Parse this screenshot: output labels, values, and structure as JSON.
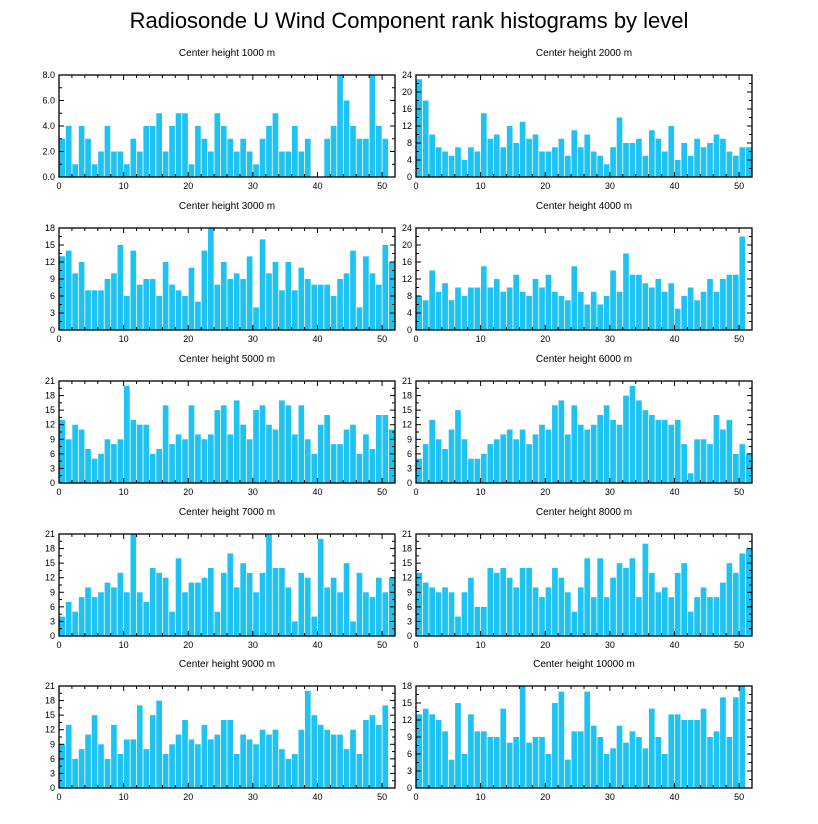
{
  "title": "Radiosonde U Wind Component rank histograms by level",
  "colors": {
    "bar": "#1ec3f2",
    "axis": "#000000"
  },
  "chart_data": [
    {
      "type": "bar",
      "title": "Center height 1000 m",
      "xlim": [
        0,
        52
      ],
      "ylim": [
        0,
        8
      ],
      "xticks": [
        "0",
        "10",
        "20",
        "30",
        "40",
        "50"
      ],
      "yticks": [
        "0.0",
        "2.0",
        "4.0",
        "6.0",
        "8.0"
      ],
      "values": [
        3,
        4,
        1,
        4,
        3,
        1,
        2,
        4,
        2,
        2,
        1,
        3,
        2,
        4,
        4,
        5,
        2,
        4,
        5,
        5,
        1,
        4,
        3,
        2,
        5,
        4,
        3,
        2,
        3,
        2,
        1,
        3,
        4,
        5,
        2,
        2,
        4,
        2,
        3,
        0,
        0,
        3,
        4,
        8,
        6,
        4,
        3,
        3,
        8,
        4,
        3,
        0
      ]
    },
    {
      "type": "bar",
      "title": "Center height 2000 m",
      "xlim": [
        0,
        52
      ],
      "ylim": [
        0,
        24
      ],
      "xticks": [
        "0",
        "10",
        "20",
        "30",
        "40",
        "50"
      ],
      "yticks": [
        "0",
        "4",
        "8",
        "12",
        "16",
        "20",
        "24"
      ],
      "values": [
        23,
        18,
        10,
        7,
        6,
        5,
        7,
        4,
        7,
        6,
        15,
        9,
        10,
        7,
        12,
        8,
        13,
        9,
        10,
        6,
        6,
        7,
        9,
        5,
        11,
        7,
        10,
        6,
        5,
        3,
        7,
        14,
        8,
        8,
        9,
        5,
        11,
        9,
        6,
        12,
        4,
        8,
        5,
        9,
        7,
        8,
        10,
        9,
        6,
        5,
        7,
        7
      ]
    },
    {
      "type": "bar",
      "title": "Center height 3000 m",
      "xlim": [
        0,
        52
      ],
      "ylim": [
        0,
        18
      ],
      "xticks": [
        "0",
        "10",
        "20",
        "30",
        "40",
        "50"
      ],
      "yticks": [
        "0",
        "3",
        "6",
        "9",
        "12",
        "15",
        "18"
      ],
      "values": [
        13,
        14,
        10,
        12,
        7,
        7,
        7,
        9,
        10,
        15,
        6,
        14,
        8,
        9,
        9,
        6,
        12,
        8,
        7,
        6,
        11,
        5,
        14,
        18,
        8,
        12,
        9,
        10,
        9,
        13,
        4,
        16,
        10,
        12,
        7,
        12,
        7,
        11,
        9,
        8,
        8,
        8,
        6,
        9,
        10,
        14,
        4,
        13,
        10,
        8,
        15,
        12
      ]
    },
    {
      "type": "bar",
      "title": "Center height 4000 m",
      "xlim": [
        0,
        52
      ],
      "ylim": [
        0,
        24
      ],
      "xticks": [
        "0",
        "10",
        "20",
        "30",
        "40",
        "50"
      ],
      "yticks": [
        "0",
        "4",
        "8",
        "12",
        "16",
        "20",
        "24"
      ],
      "values": [
        8,
        7,
        14,
        9,
        11,
        7,
        10,
        8,
        10,
        10,
        15,
        10,
        12,
        9,
        10,
        13,
        9,
        8,
        12,
        10,
        13,
        9,
        8,
        7,
        15,
        9,
        6,
        9,
        6,
        8,
        14,
        9,
        18,
        13,
        13,
        11,
        10,
        12,
        9,
        11,
        5,
        8,
        10,
        7,
        9,
        12,
        9,
        12,
        13,
        13,
        22,
        0
      ]
    },
    {
      "type": "bar",
      "title": "Center height 5000 m",
      "xlim": [
        0,
        52
      ],
      "ylim": [
        0,
        21
      ],
      "xticks": [
        "0",
        "10",
        "20",
        "30",
        "40",
        "50"
      ],
      "yticks": [
        "0",
        "3",
        "6",
        "9",
        "12",
        "15",
        "18",
        "21"
      ],
      "values": [
        13,
        9,
        12,
        11,
        7,
        5,
        6,
        9,
        8,
        9,
        20,
        13,
        12,
        12,
        6,
        7,
        16,
        8,
        10,
        9,
        16,
        10,
        9,
        10,
        15,
        16,
        10,
        17,
        12,
        9,
        15,
        16,
        12,
        11,
        17,
        16,
        10,
        16,
        9,
        6,
        12,
        14,
        8,
        8,
        11,
        12,
        6,
        10,
        7,
        14,
        14,
        11
      ]
    },
    {
      "type": "bar",
      "title": "Center height 6000 m",
      "xlim": [
        0,
        52
      ],
      "ylim": [
        0,
        21
      ],
      "xticks": [
        "0",
        "10",
        "20",
        "30",
        "40",
        "50"
      ],
      "yticks": [
        "0",
        "3",
        "6",
        "9",
        "12",
        "15",
        "18",
        "21"
      ],
      "values": [
        5,
        8,
        13,
        9,
        7,
        11,
        15,
        9,
        5,
        5,
        6,
        8,
        9,
        10,
        11,
        9,
        11,
        8,
        10,
        12,
        11,
        16,
        17,
        10,
        16,
        12,
        11,
        12,
        14,
        16,
        13,
        12,
        18,
        20,
        17,
        15,
        14,
        13,
        13,
        12,
        13,
        8,
        2,
        9,
        9,
        8,
        14,
        11,
        13,
        6,
        8,
        6
      ]
    },
    {
      "type": "bar",
      "title": "Center height 7000 m",
      "xlim": [
        0,
        52
      ],
      "ylim": [
        0,
        21
      ],
      "xticks": [
        "0",
        "10",
        "20",
        "30",
        "40",
        "50"
      ],
      "yticks": [
        "0",
        "3",
        "6",
        "9",
        "12",
        "15",
        "18",
        "21"
      ],
      "values": [
        4,
        7,
        5,
        8,
        10,
        8,
        9,
        11,
        10,
        13,
        9,
        21,
        9,
        7,
        14,
        13,
        12,
        5,
        16,
        9,
        11,
        11,
        12,
        14,
        5,
        13,
        17,
        10,
        15,
        13,
        9,
        13,
        21,
        14,
        14,
        10,
        3,
        13,
        12,
        4,
        20,
        10,
        12,
        9,
        15,
        3,
        13,
        9,
        8,
        12,
        9,
        12
      ]
    },
    {
      "type": "bar",
      "title": "Center height 8000 m",
      "xlim": [
        0,
        52
      ],
      "ylim": [
        0,
        21
      ],
      "xticks": [
        "0",
        "10",
        "20",
        "30",
        "40",
        "50"
      ],
      "yticks": [
        "0",
        "3",
        "6",
        "9",
        "12",
        "15",
        "18",
        "21"
      ],
      "values": [
        13,
        11,
        10,
        9,
        10,
        9,
        4,
        9,
        12,
        6,
        6,
        14,
        13,
        14,
        12,
        10,
        14,
        14,
        10,
        8,
        10,
        14,
        12,
        9,
        5,
        10,
        16,
        8,
        16,
        8,
        12,
        15,
        14,
        16,
        8,
        19,
        13,
        9,
        10,
        8,
        13,
        15,
        5,
        8,
        10,
        8,
        8,
        11,
        15,
        13,
        17,
        18
      ]
    },
    {
      "type": "bar",
      "title": "Center height 9000 m",
      "xlim": [
        0,
        52
      ],
      "ylim": [
        0,
        21
      ],
      "xticks": [
        "0",
        "10",
        "20",
        "30",
        "40",
        "50"
      ],
      "yticks": [
        "0",
        "3",
        "6",
        "9",
        "12",
        "15",
        "18",
        "21"
      ],
      "values": [
        9,
        13,
        6,
        8,
        11,
        15,
        9,
        6,
        13,
        7,
        10,
        10,
        17,
        8,
        15,
        18,
        7,
        9,
        11,
        14,
        10,
        9,
        13,
        10,
        11,
        14,
        14,
        7,
        11,
        10,
        9,
        12,
        11,
        12,
        8,
        6,
        7,
        12,
        20,
        15,
        13,
        12,
        11,
        11,
        8,
        12,
        7,
        14,
        15,
        13,
        17,
        0
      ]
    },
    {
      "type": "bar",
      "title": "Center height 10000 m",
      "xlim": [
        0,
        52
      ],
      "ylim": [
        0,
        18
      ],
      "xticks": [
        "0",
        "10",
        "20",
        "30",
        "40",
        "50"
      ],
      "yticks": [
        "0",
        "3",
        "6",
        "9",
        "12",
        "15",
        "18"
      ],
      "values": [
        13,
        14,
        13,
        12,
        10,
        5,
        15,
        6,
        13,
        10,
        10,
        9,
        9,
        14,
        8,
        9,
        18,
        8,
        9,
        9,
        6,
        15,
        17,
        5,
        10,
        10,
        17,
        11,
        9,
        6,
        7,
        11,
        8,
        10,
        9,
        7,
        14,
        9,
        6,
        13,
        13,
        12,
        12,
        12,
        14,
        9,
        10,
        16,
        9,
        16,
        18,
        0
      ]
    }
  ]
}
